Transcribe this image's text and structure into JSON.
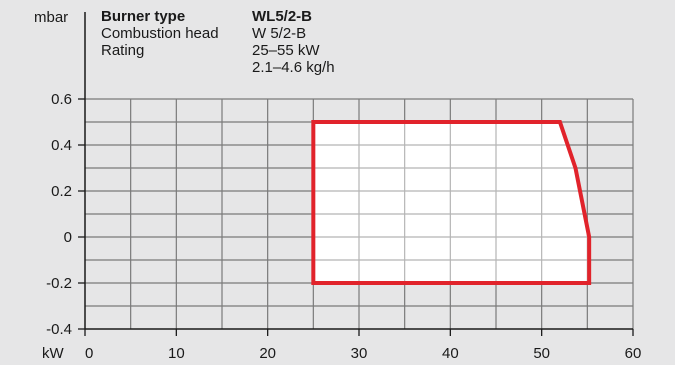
{
  "chart_data": {
    "type": "area",
    "header": {
      "rows": [
        {
          "label": "Burner type",
          "value": "WL5/2-B",
          "bold": true
        },
        {
          "label": "Combustion head",
          "value": "W 5/2-B",
          "bold": false
        },
        {
          "label": "Rating",
          "value": "25–55 kW",
          "bold": false
        },
        {
          "label": "",
          "value": "2.1–4.6 kg/h",
          "bold": false
        }
      ]
    },
    "xlabel": "kW",
    "ylabel": "mbar",
    "xlim": [
      0,
      60
    ],
    "ylim": [
      -0.4,
      0.6
    ],
    "x_ticks": [
      0,
      10,
      20,
      30,
      40,
      50,
      60
    ],
    "x_tick_labels": [
      "0",
      "10",
      "20",
      "30",
      "40",
      "50",
      "60"
    ],
    "y_ticks": [
      0.6,
      0.4,
      0.2,
      0,
      -0.2,
      -0.4
    ],
    "y_tick_labels": [
      "0.6",
      "0.4",
      "0.2",
      "0",
      "-0.2",
      "-0.4"
    ],
    "x_minor_step": 5,
    "y_minor_step": 0.1,
    "grid": true,
    "series": [
      {
        "x": [
          25,
          25,
          52,
          53.7,
          55.2,
          55.2
        ],
        "y": [
          -0.2,
          0.5,
          0.5,
          0.3,
          0,
          -0.2
        ]
      }
    ],
    "colors": {
      "outline": "#e1232b",
      "area_fill": "#ffffff",
      "grid": "#7a7a7a",
      "grid_inside_area": "#b5b5b5",
      "background": "#e6e6e7",
      "text": "#1a1a1a"
    }
  }
}
